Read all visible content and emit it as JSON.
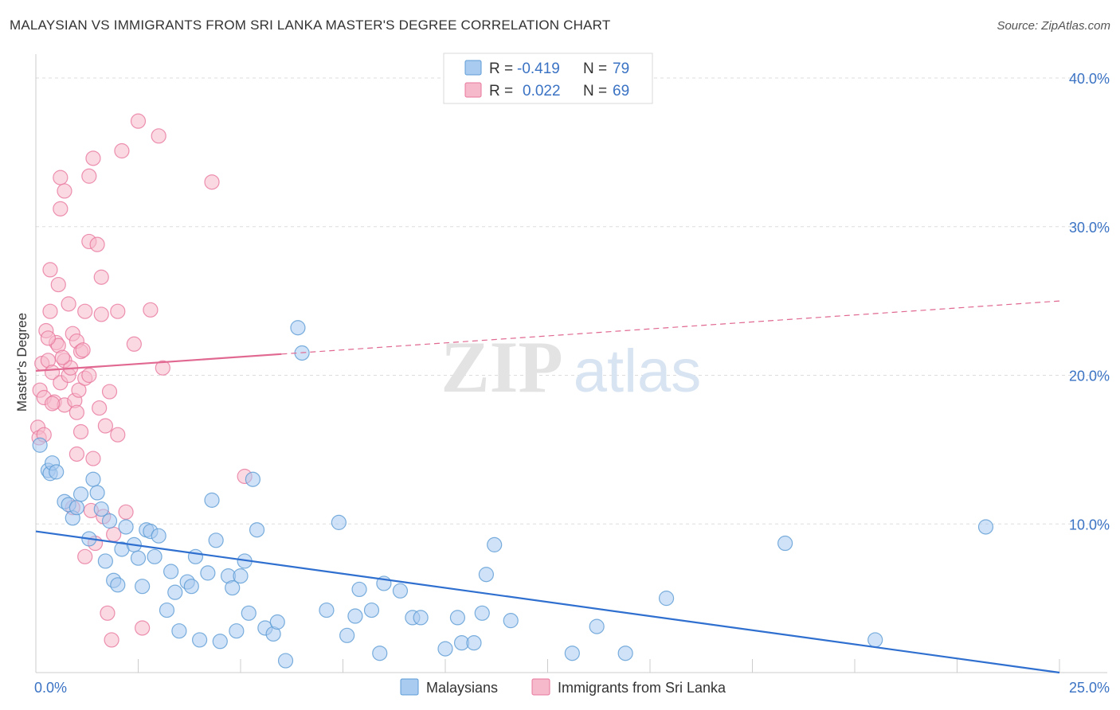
{
  "title": "MALAYSIAN VS IMMIGRANTS FROM SRI LANKA MASTER'S DEGREE CORRELATION CHART",
  "source": "Source: ZipAtlas.com",
  "watermark": {
    "zip": "ZIP",
    "atlas": "atlas"
  },
  "colors": {
    "blue": "#5b9bd5",
    "blue_fill": "#aacbf0",
    "blue_line": "#2f6fcf",
    "pink": "#e8779c",
    "pink_fill": "#f6b9cc",
    "pink_line": "#e06891",
    "axis_text": "#3b73c4",
    "grid": "#dddddd"
  },
  "stats_legend": [
    {
      "r_label": "R = ",
      "r_value": "-0.419",
      "n_label": "N = ",
      "n_value": "79"
    },
    {
      "r_label": "R = ",
      "r_value": "0.022",
      "n_label": "N = ",
      "n_value": "69"
    }
  ],
  "chart_data": {
    "type": "scatter",
    "ylabel": "Master's Degree",
    "xlim": [
      0,
      25
    ],
    "ylim": [
      0,
      40
    ],
    "x_tick_labels": [
      {
        "value": 0,
        "label": "0.0%"
      },
      {
        "value": 25,
        "label": "25.0%"
      }
    ],
    "y_tick_labels": [
      {
        "value": 10,
        "label": "10.0%"
      },
      {
        "value": 20,
        "label": "20.0%"
      },
      {
        "value": 30,
        "label": "30.0%"
      },
      {
        "value": 40,
        "label": "40.0%"
      }
    ],
    "grid": true,
    "legend": "bottom-center",
    "series": [
      {
        "name": "Malaysians",
        "color": "#5b9bd5",
        "trend": {
          "x": [
            0,
            25
          ],
          "y": [
            9.5,
            0.0
          ],
          "style": "solid"
        },
        "points": [
          [
            0.1,
            15.3
          ],
          [
            0.3,
            13.6
          ],
          [
            0.35,
            13.4
          ],
          [
            0.4,
            14.1
          ],
          [
            0.5,
            13.5
          ],
          [
            0.7,
            11.5
          ],
          [
            0.8,
            11.3
          ],
          [
            0.9,
            10.4
          ],
          [
            1.0,
            11.1
          ],
          [
            1.1,
            12.0
          ],
          [
            1.3,
            9.0
          ],
          [
            1.4,
            13.0
          ],
          [
            1.5,
            12.1
          ],
          [
            1.6,
            11.0
          ],
          [
            1.7,
            7.5
          ],
          [
            1.8,
            10.2
          ],
          [
            1.9,
            6.2
          ],
          [
            2.0,
            5.9
          ],
          [
            2.1,
            8.3
          ],
          [
            2.2,
            9.8
          ],
          [
            2.4,
            8.6
          ],
          [
            2.5,
            7.7
          ],
          [
            2.6,
            5.8
          ],
          [
            2.7,
            9.6
          ],
          [
            2.8,
            9.5
          ],
          [
            2.9,
            7.8
          ],
          [
            3.0,
            9.2
          ],
          [
            3.2,
            4.2
          ],
          [
            3.3,
            6.8
          ],
          [
            3.4,
            5.4
          ],
          [
            3.5,
            2.8
          ],
          [
            3.7,
            6.1
          ],
          [
            3.8,
            5.8
          ],
          [
            3.9,
            7.8
          ],
          [
            4.0,
            2.2
          ],
          [
            4.2,
            6.7
          ],
          [
            4.3,
            11.6
          ],
          [
            4.4,
            8.9
          ],
          [
            4.5,
            2.1
          ],
          [
            4.7,
            6.5
          ],
          [
            4.8,
            5.7
          ],
          [
            4.9,
            2.8
          ],
          [
            5.0,
            6.5
          ],
          [
            5.1,
            7.5
          ],
          [
            5.2,
            4.0
          ],
          [
            5.3,
            13.0
          ],
          [
            5.4,
            9.6
          ],
          [
            5.6,
            3.0
          ],
          [
            5.8,
            2.6
          ],
          [
            5.9,
            3.4
          ],
          [
            6.1,
            0.8
          ],
          [
            6.4,
            23.2
          ],
          [
            6.5,
            21.5
          ],
          [
            7.1,
            4.2
          ],
          [
            7.4,
            10.1
          ],
          [
            7.6,
            2.5
          ],
          [
            7.8,
            3.8
          ],
          [
            7.9,
            5.6
          ],
          [
            8.2,
            4.2
          ],
          [
            8.4,
            1.3
          ],
          [
            8.5,
            6.0
          ],
          [
            8.9,
            5.5
          ],
          [
            9.2,
            3.7
          ],
          [
            9.4,
            3.7
          ],
          [
            10.0,
            1.6
          ],
          [
            10.3,
            3.7
          ],
          [
            10.4,
            2.0
          ],
          [
            10.7,
            2.0
          ],
          [
            10.9,
            4.0
          ],
          [
            11.2,
            8.6
          ],
          [
            11.0,
            6.6
          ],
          [
            11.6,
            3.5
          ],
          [
            13.1,
            1.3
          ],
          [
            13.7,
            3.1
          ],
          [
            14.4,
            1.3
          ],
          [
            15.4,
            5.0
          ],
          [
            18.3,
            8.7
          ],
          [
            20.5,
            2.2
          ],
          [
            23.2,
            9.8
          ]
        ]
      },
      {
        "name": "Immigrants from Sri Lanka",
        "color": "#e8779c",
        "trend": {
          "x": [
            0,
            25
          ],
          "y": [
            20.3,
            25.0
          ],
          "solid_to": 6.0,
          "style": "solid-then-dashed"
        },
        "points": [
          [
            0.05,
            16.5
          ],
          [
            0.08,
            15.8
          ],
          [
            0.1,
            19.0
          ],
          [
            0.15,
            20.8
          ],
          [
            0.2,
            18.5
          ],
          [
            0.25,
            23.0
          ],
          [
            0.3,
            21.0
          ],
          [
            0.35,
            24.3
          ],
          [
            0.4,
            20.2
          ],
          [
            0.45,
            18.2
          ],
          [
            0.35,
            27.1
          ],
          [
            0.5,
            22.2
          ],
          [
            0.55,
            26.1
          ],
          [
            0.6,
            19.5
          ],
          [
            0.55,
            22.0
          ],
          [
            0.7,
            21.0
          ],
          [
            0.6,
            33.3
          ],
          [
            0.6,
            31.2
          ],
          [
            0.7,
            18.0
          ],
          [
            0.8,
            20.0
          ],
          [
            0.7,
            32.4
          ],
          [
            0.8,
            24.8
          ],
          [
            0.85,
            20.5
          ],
          [
            0.9,
            22.8
          ],
          [
            0.95,
            18.3
          ],
          [
            1.0,
            22.3
          ],
          [
            1.0,
            14.7
          ],
          [
            1.05,
            19.0
          ],
          [
            1.1,
            21.6
          ],
          [
            1.1,
            16.2
          ],
          [
            1.15,
            21.7
          ],
          [
            1.2,
            19.8
          ],
          [
            1.2,
            24.3
          ],
          [
            1.3,
            33.4
          ],
          [
            1.3,
            29.0
          ],
          [
            1.35,
            10.9
          ],
          [
            1.4,
            14.4
          ],
          [
            1.4,
            34.6
          ],
          [
            1.45,
            8.7
          ],
          [
            1.5,
            28.8
          ],
          [
            1.55,
            17.8
          ],
          [
            1.6,
            24.1
          ],
          [
            1.6,
            26.6
          ],
          [
            1.65,
            10.5
          ],
          [
            1.7,
            16.6
          ],
          [
            1.75,
            4.0
          ],
          [
            1.8,
            18.9
          ],
          [
            1.85,
            2.2
          ],
          [
            1.9,
            9.3
          ],
          [
            2.0,
            24.3
          ],
          [
            2.1,
            35.1
          ],
          [
            2.2,
            10.8
          ],
          [
            2.4,
            22.1
          ],
          [
            2.5,
            37.1
          ],
          [
            2.6,
            3.0
          ],
          [
            2.8,
            24.4
          ],
          [
            3.0,
            36.1
          ],
          [
            3.1,
            20.5
          ],
          [
            4.3,
            33.0
          ],
          [
            5.1,
            13.2
          ],
          [
            0.2,
            16.0
          ],
          [
            0.4,
            18.1
          ],
          [
            1.2,
            7.8
          ],
          [
            0.9,
            11.1
          ],
          [
            1.3,
            20.0
          ],
          [
            0.3,
            22.5
          ],
          [
            2.0,
            16.0
          ],
          [
            1.0,
            17.5
          ],
          [
            0.65,
            21.2
          ]
        ]
      }
    ]
  }
}
